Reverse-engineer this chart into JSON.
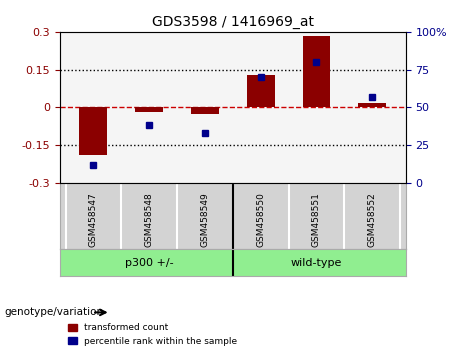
{
  "title": "GDS3598 / 1416969_at",
  "samples": [
    "GSM458547",
    "GSM458548",
    "GSM458549",
    "GSM458550",
    "GSM458551",
    "GSM458552"
  ],
  "red_bars": [
    -0.19,
    -0.018,
    -0.028,
    0.13,
    0.285,
    0.018
  ],
  "blue_dots": [
    0.12,
    0.38,
    0.33,
    0.7,
    0.8,
    0.57
  ],
  "ylim_left": [
    -0.3,
    0.3
  ],
  "ylim_right": [
    0,
    100
  ],
  "yticks_left": [
    -0.3,
    -0.15,
    0,
    0.15,
    0.3
  ],
  "yticks_right": [
    0,
    25,
    50,
    75,
    100
  ],
  "hlines": [
    0.15,
    0,
    -0.15
  ],
  "groups": [
    {
      "label": "p300 +/-",
      "samples": [
        0,
        1,
        2
      ],
      "color": "#90EE90"
    },
    {
      "label": "wild-type",
      "samples": [
        3,
        4,
        5
      ],
      "color": "#90EE90"
    }
  ],
  "group_bg_color": "#d3d3d3",
  "group_label_color": "#90EE90",
  "bar_color": "#8B0000",
  "dot_color": "#00008B",
  "zero_line_color": "#cc0000",
  "dotted_line_color": "#000000",
  "legend_red_label": "transformed count",
  "legend_blue_label": "percentile rank within the sample",
  "genotype_label": "genotype/variation",
  "plot_bg": "#f5f5f5"
}
